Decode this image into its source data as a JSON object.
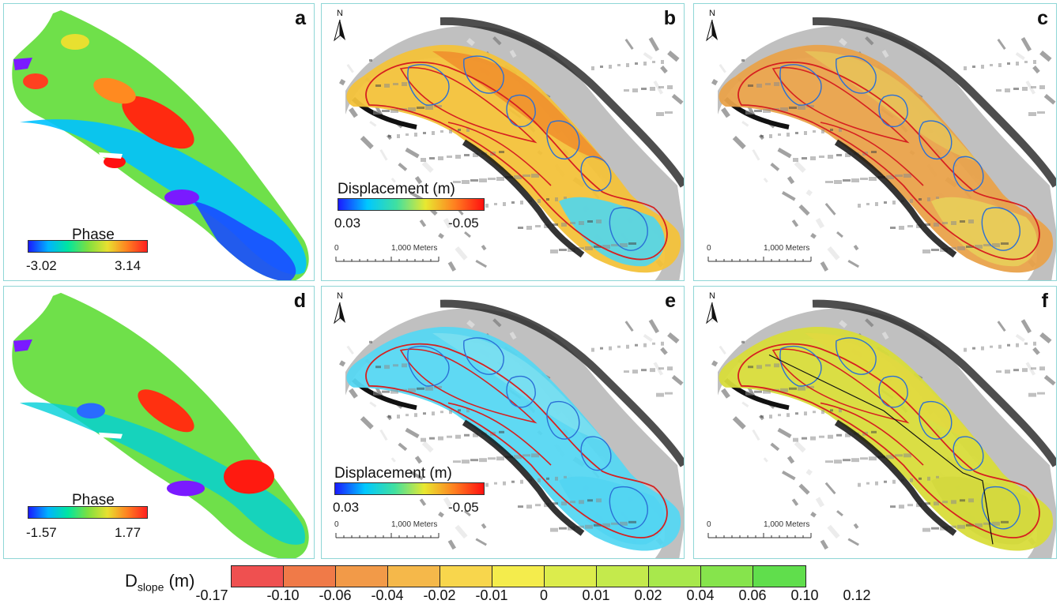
{
  "panels": [
    {
      "id": "a",
      "letter": "a",
      "type": "phase",
      "legend_title": "Phase",
      "legend_min": "-3.02",
      "legend_max": "3.14",
      "variant": "a"
    },
    {
      "id": "b",
      "letter": "b",
      "type": "disp",
      "legend_title": "Displacement (m)",
      "legend_min": "0.03",
      "legend_max": "-0.05",
      "north": "N",
      "scale_zero": "0",
      "scale_label": "1,000 Meters",
      "fill": "#f3c23a",
      "fill2": "#f08a2a",
      "lower": "#4fd6f0"
    },
    {
      "id": "c",
      "letter": "c",
      "type": "map",
      "north": "N",
      "scale_zero": "0",
      "scale_label": "1,000 Meters",
      "fill": "#e9a24a",
      "fill2": "#e7c65a",
      "lower": "#e8cf5a"
    },
    {
      "id": "d",
      "letter": "d",
      "type": "phase",
      "legend_title": "Phase",
      "legend_min": "-1.57",
      "legend_max": "1.77",
      "variant": "d"
    },
    {
      "id": "e",
      "letter": "e",
      "type": "disp",
      "legend_title": "Displacement (m)",
      "legend_min": "0.03",
      "legend_max": "-0.05",
      "north": "N",
      "scale_zero": "0",
      "scale_label": "1,000 Meters",
      "fill": "#56d7f2",
      "fill2": "#7ee0f0",
      "lower": "#52d4f2"
    },
    {
      "id": "f",
      "letter": "f",
      "type": "map",
      "north": "N",
      "scale_zero": "0",
      "scale_label": "1,000 Meters",
      "fill": "#d8dc3a",
      "fill2": "#e2d840",
      "lower": "#d3d83e"
    }
  ],
  "dslope": {
    "label_main": "D",
    "label_sub": "slope",
    "label_unit": " (m)",
    "colors": [
      "#ef5050",
      "#f07a48",
      "#f29a48",
      "#f5b84a",
      "#f8d64c",
      "#f4ec4c",
      "#dcec4c",
      "#c4ea4c",
      "#a8e84c",
      "#86e44c",
      "#60de4c"
    ],
    "ticks": [
      "-0.17",
      "-0.10",
      "-0.06",
      "-0.04",
      "-0.02",
      "-0.01",
      "0",
      "0.01",
      "0.02",
      "0.04",
      "0.06",
      "0.10",
      "0.12"
    ]
  },
  "colors": {
    "panel_border": "#8fd6d6",
    "boundary_red": "#d62020",
    "boundary_blue": "#2a6fd6",
    "phase_gradient": [
      "#1a1aff",
      "#00b4ff",
      "#00e6a0",
      "#7de040",
      "#e8e030",
      "#ff8020",
      "#ff2020"
    ],
    "disp_gradient": [
      "#1a1aff",
      "#00c8ff",
      "#40e0a0",
      "#e8e830",
      "#ff8020",
      "#ff1010"
    ]
  }
}
